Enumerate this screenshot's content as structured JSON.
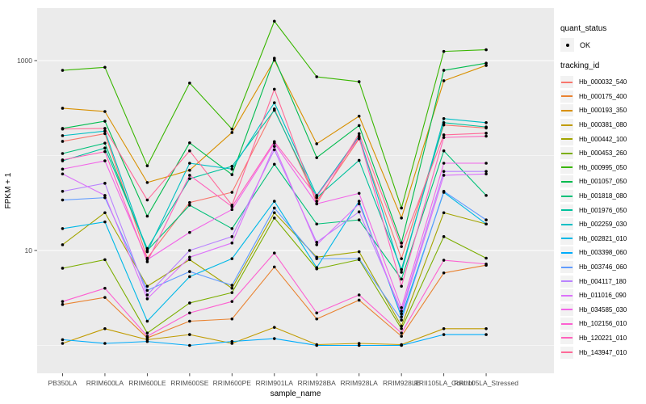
{
  "panel": {
    "bg": "#EBEBEB",
    "grid_color": "#FFFFFF",
    "figure_bg": "#FFFFFF",
    "tick_text_color": "#4D4D4D"
  },
  "legend": {
    "quant_status_title": "quant_status",
    "quant_status_items": [
      {
        "label": "OK"
      }
    ],
    "tracking_id_title": "tracking_id"
  },
  "chart_data": {
    "type": "line",
    "title": "",
    "xlabel": "sample_name",
    "ylabel": "FPKM + 1",
    "y_scale": "log10",
    "grid": "on",
    "legend_position": "right",
    "point_color": "#000000",
    "ylim": [
      0.51,
      3570
    ],
    "y_ticks": [
      {
        "value": 10,
        "label": "10"
      },
      {
        "value": 1000,
        "label": "1000"
      }
    ],
    "y_minor_gridlines": [
      1,
      100
    ],
    "x_categories": [
      "PB350LA",
      "RRIM600LA",
      "RRIM600LE",
      "RRIM600SE",
      "RRIM600PE",
      "RRIM901LA",
      "RRIM928BA",
      "RRIM928LA",
      "RRIM928LE",
      "RRII105LA_Control",
      "RRII105LA_Stressed"
    ],
    "series": [
      {
        "tracking_id": "Hb_000032_540",
        "quant_status": "OK",
        "color": "#F8766D",
        "values": [
          141,
          170,
          8.3,
          32,
          41,
          310,
          33,
          150,
          8.2,
          210,
          195
        ]
      },
      {
        "tracking_id": "Hb_000175_400",
        "quant_status": "OK",
        "color": "#EA8331",
        "values": [
          2.7,
          3.2,
          1.2,
          1.8,
          1.9,
          6.7,
          1.9,
          3.0,
          1.25,
          5.8,
          7.0
        ]
      },
      {
        "tracking_id": "Hb_000193_350",
        "quant_status": "OK",
        "color": "#D89000",
        "values": [
          315,
          291,
          52,
          70,
          175,
          1010,
          133,
          260,
          22,
          613,
          890
        ]
      },
      {
        "tracking_id": "Hb_000381_080",
        "quant_status": "OK",
        "color": "#C09B00",
        "values": [
          1.05,
          1.5,
          1.15,
          1.3,
          1.05,
          1.55,
          1.02,
          1.05,
          1.02,
          1.5,
          1.5
        ]
      },
      {
        "tracking_id": "Hb_000442_100",
        "quant_status": "OK",
        "color": "#A3A500",
        "values": [
          11.5,
          25,
          4.2,
          8.0,
          4.0,
          25,
          8.5,
          9.7,
          1.6,
          25,
          19
        ]
      },
      {
        "tracking_id": "Hb_000453_260",
        "quant_status": "OK",
        "color": "#7CAE00",
        "values": [
          6.5,
          8.0,
          1.35,
          2.8,
          3.6,
          22,
          6.4,
          8.0,
          1.5,
          14,
          8.3
        ]
      },
      {
        "tracking_id": "Hb_000995_050",
        "quant_status": "OK",
        "color": "#39B600",
        "values": [
          790,
          850,
          78,
          580,
          190,
          2600,
          675,
          600,
          28,
          1250,
          1300
        ]
      },
      {
        "tracking_id": "Hb_001057_050",
        "quant_status": "OK",
        "color": "#00BB4E",
        "values": [
          193,
          230,
          23,
          136,
          63,
          1060,
          95,
          207,
          12,
          790,
          940
        ]
      },
      {
        "tracking_id": "Hb_001818_080",
        "quant_status": "OK",
        "color": "#00C079",
        "values": [
          105,
          135,
          10,
          30,
          17,
          81,
          19,
          21,
          5.0,
          112,
          38
        ]
      },
      {
        "tracking_id": "Hb_001976_050",
        "quant_status": "OK",
        "color": "#00C19C",
        "values": [
          88,
          120,
          10.5,
          57,
          77,
          300,
          36,
          89,
          6.3,
          222,
          200
        ]
      },
      {
        "tracking_id": "Hb_002259_030",
        "quant_status": "OK",
        "color": "#00BFC4",
        "values": [
          162,
          181,
          9.7,
          83,
          72,
          360,
          38,
          160,
          5.9,
          245,
          222
        ]
      },
      {
        "tracking_id": "Hb_002821_010",
        "quant_status": "OK",
        "color": "#00B8E7",
        "values": [
          17,
          20,
          1.8,
          5.3,
          8.2,
          33,
          6.6,
          33,
          2.0,
          41,
          19
        ]
      },
      {
        "tracking_id": "Hb_003398_060",
        "quant_status": "OK",
        "color": "#00ACFC",
        "values": [
          1.15,
          1.05,
          1.1,
          1.0,
          1.1,
          1.18,
          1.0,
          1.0,
          1.0,
          1.3,
          1.3
        ]
      },
      {
        "tracking_id": "Hb_003746_060",
        "quant_status": "OK",
        "color": "#619CFF",
        "values": [
          34,
          36,
          3.8,
          6.0,
          4.3,
          28,
          8.2,
          8.2,
          1.85,
          42,
          21
        ]
      },
      {
        "tracking_id": "Hb_004117_180",
        "quant_status": "OK",
        "color": "#B983FF",
        "values": [
          42,
          51,
          3.4,
          10,
          14,
          115,
          12.2,
          25.5,
          2.3,
          68,
          68
        ]
      },
      {
        "tracking_id": "Hb_011016_090",
        "quant_status": "OK",
        "color": "#DC71FA",
        "values": [
          64,
          38,
          3.1,
          8.5,
          12,
          125,
          11.5,
          31,
          2.15,
          62,
          64
        ]
      },
      {
        "tracking_id": "Hb_034585_030",
        "quant_status": "OK",
        "color": "#F265E8",
        "values": [
          72,
          88,
          8.0,
          15.5,
          27,
          135,
          31,
          40,
          2.5,
          83,
          83
        ]
      },
      {
        "tracking_id": "Hb_102156_010",
        "quant_status": "OK",
        "color": "#FD61D1",
        "values": [
          2.9,
          4.0,
          1.25,
          2.2,
          2.9,
          9.4,
          2.2,
          3.4,
          1.35,
          7.9,
          7.2
        ]
      },
      {
        "tracking_id": "Hb_120221_010",
        "quant_status": "OK",
        "color": "#FF62BC",
        "values": [
          90,
          110,
          7.6,
          62,
          29,
          140,
          37,
          155,
          4.2,
          155,
          160
        ]
      },
      {
        "tracking_id": "Hb_143947_010",
        "quant_status": "OK",
        "color": "#FF6A98",
        "values": [
          190,
          193,
          34,
          112,
          30,
          500,
          31,
          170,
          11,
          165,
          172
        ]
      }
    ]
  }
}
